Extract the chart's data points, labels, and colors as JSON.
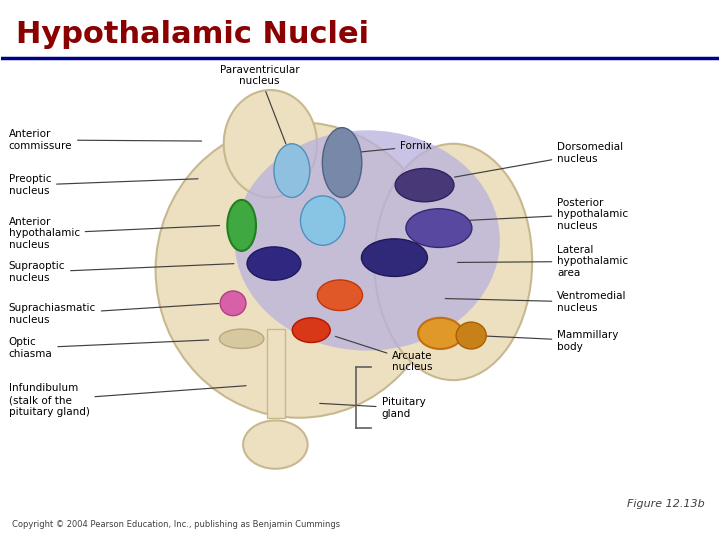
{
  "title": "Hypothalamic Nuclei",
  "title_color": "#8B0000",
  "title_fontsize": 22,
  "bg_color": "#FFFFFF",
  "header_line_color": "#00008B",
  "fig_label": "Figure 12.13b",
  "copyright": "Copyright © 2004 Pearson Education, Inc., publishing as Benjamin Cummings",
  "label_fontsize": 7.5
}
